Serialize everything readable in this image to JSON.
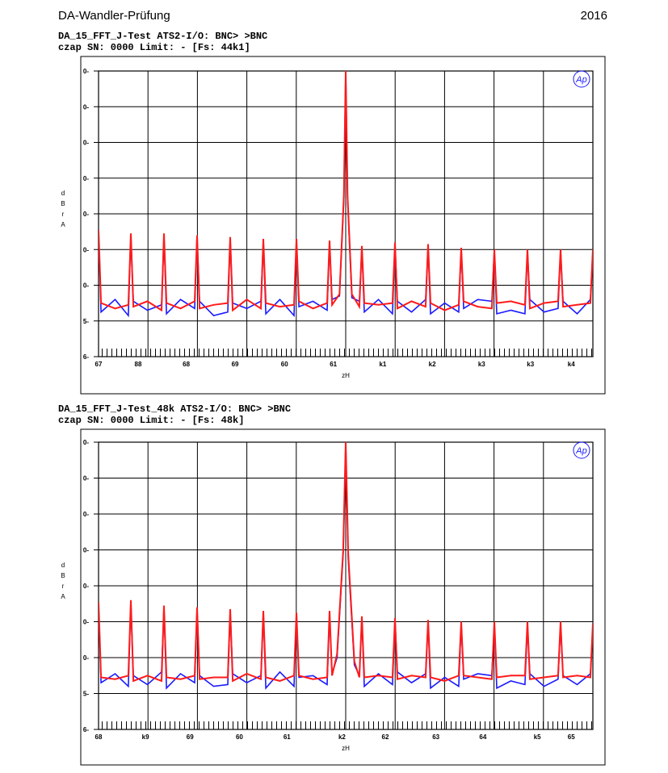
{
  "header": {
    "title": "DA-Wandler-Prüfung",
    "year": "2016"
  },
  "chart_data": [
    {
      "type": "line",
      "title": "DA_15_FFT_J-Test   ATS2-I/O: BNC> >BNC",
      "subtitle": "czap SN: 0000   Limit: - [Fs: 44k1]",
      "ylabel": "dBrA",
      "xlabel": "zH",
      "logo": "Ap",
      "xlim": [
        7000,
        15000
      ],
      "ylim": [
        -160,
        0
      ],
      "grid": true,
      "yticks": [
        {
          "value": 0,
          "label": "0-"
        },
        {
          "value": -20,
          "label": "0-"
        },
        {
          "value": -40,
          "label": "0-"
        },
        {
          "value": -60,
          "label": "0-"
        },
        {
          "value": -80,
          "label": "0-"
        },
        {
          "value": -100,
          "label": "0-"
        },
        {
          "value": -120,
          "label": "0-"
        },
        {
          "value": -140,
          "label": "5-"
        },
        {
          "value": -160,
          "label": "6-"
        }
      ],
      "xticks": [
        {
          "value": 7000,
          "label": "67"
        },
        {
          "value": 7640,
          "label": "88"
        },
        {
          "value": 8420,
          "label": "68"
        },
        {
          "value": 9210,
          "label": "69"
        },
        {
          "value": 10010,
          "label": "60"
        },
        {
          "value": 10800,
          "label": "61"
        },
        {
          "value": 11600,
          "label": "k1"
        },
        {
          "value": 12400,
          "label": "k2"
        },
        {
          "value": 13200,
          "label": "k3"
        },
        {
          "value": 13990,
          "label": "k3"
        },
        {
          "value": 14650,
          "label": "k4"
        }
      ],
      "x": [
        7000,
        7040,
        7268,
        7483,
        7523,
        7563,
        7791,
        8019,
        8059,
        8099,
        8327,
        8555,
        8595,
        8635,
        8863,
        9091,
        9131,
        9171,
        9399,
        9627,
        9667,
        9707,
        9935,
        10163,
        10203,
        10243,
        10471,
        10699,
        10739,
        10779,
        10900,
        10970,
        11000,
        11030,
        11100,
        11221,
        11261,
        11301,
        11529,
        11757,
        11797,
        11837,
        12065,
        12293,
        12333,
        12373,
        12601,
        12829,
        12869,
        12909,
        13137,
        13365,
        13405,
        13445,
        13673,
        13901,
        13941,
        13981,
        14209,
        14437,
        14477,
        14517,
        14745,
        14960,
        15000
      ],
      "series": [
        {
          "color": "#1a1aff",
          "values": [
            -90,
            -135,
            -128,
            -137,
            -92,
            -129,
            -134,
            -131,
            -92,
            -136,
            -128,
            -133,
            -93,
            -129,
            -137,
            -135,
            -94,
            -130,
            -133,
            -129,
            -95,
            -136,
            -128,
            -137,
            -95,
            -132,
            -129,
            -134,
            -96,
            -128,
            -126,
            -72,
            -1,
            -72,
            -127,
            -129,
            -99,
            -135,
            -128,
            -136,
            -97,
            -129,
            -135,
            -128,
            -98,
            -136,
            -130,
            -135,
            -100,
            -133,
            -128,
            -129,
            -101,
            -136,
            -134,
            -136,
            -101,
            -128,
            -135,
            -133,
            -101,
            -129,
            -136,
            -128,
            -101
          ]
        },
        {
          "color": "#ff1a1a",
          "values": [
            -89,
            -130,
            -133,
            -131,
            -91,
            -132,
            -129,
            -134,
            -91,
            -130,
            -133,
            -129,
            -92,
            -133,
            -131,
            -130,
            -93,
            -134,
            -128,
            -133,
            -94,
            -130,
            -132,
            -131,
            -94,
            -129,
            -133,
            -130,
            -95,
            -131,
            -125,
            -70,
            0,
            -70,
            -125,
            -132,
            -98,
            -130,
            -131,
            -130,
            -96,
            -133,
            -129,
            -132,
            -97,
            -130,
            -134,
            -131,
            -99,
            -129,
            -132,
            -133,
            -100,
            -130,
            -129,
            -131,
            -100,
            -133,
            -130,
            -129,
            -100,
            -132,
            -131,
            -130,
            -100
          ]
        }
      ]
    },
    {
      "type": "line",
      "title": "DA_15_FFT_J-Test_48k   ATS2-I/O: BNC> >BNC",
      "subtitle": "czap SN: 0000   Limit: - [Fs: 48k]",
      "ylabel": "dBrA",
      "xlabel": "zH",
      "logo": "Ap",
      "xlim": [
        8000,
        16000
      ],
      "ylim": [
        -160,
        0
      ],
      "grid": true,
      "yticks": [
        {
          "value": 0,
          "label": "0-"
        },
        {
          "value": -20,
          "label": "0-"
        },
        {
          "value": -40,
          "label": "0-"
        },
        {
          "value": -60,
          "label": "0-"
        },
        {
          "value": -80,
          "label": "0-"
        },
        {
          "value": -100,
          "label": "0-"
        },
        {
          "value": -120,
          "label": "0-"
        },
        {
          "value": -140,
          "label": "5-"
        },
        {
          "value": -160,
          "label": "6-"
        }
      ],
      "xticks": [
        {
          "value": 8000,
          "label": "68"
        },
        {
          "value": 8760,
          "label": "k9"
        },
        {
          "value": 9480,
          "label": "69"
        },
        {
          "value": 10280,
          "label": "60"
        },
        {
          "value": 11050,
          "label": "61"
        },
        {
          "value": 11940,
          "label": "k2"
        },
        {
          "value": 12640,
          "label": "62"
        },
        {
          "value": 13460,
          "label": "63"
        },
        {
          "value": 14220,
          "label": "64"
        },
        {
          "value": 15100,
          "label": "k5"
        },
        {
          "value": 15650,
          "label": "65"
        }
      ],
      "x": [
        8000,
        8040,
        8268,
        8483,
        8523,
        8563,
        8791,
        9019,
        9059,
        9099,
        9327,
        9555,
        9595,
        9635,
        9863,
        10091,
        10131,
        10171,
        10399,
        10627,
        10667,
        10707,
        10935,
        11163,
        11203,
        11243,
        11471,
        11699,
        11739,
        11779,
        11860,
        11960,
        12000,
        12040,
        12140,
        12221,
        12261,
        12301,
        12529,
        12757,
        12797,
        12837,
        13065,
        13293,
        13333,
        13373,
        13601,
        13829,
        13869,
        13909,
        14137,
        14365,
        14405,
        14445,
        14673,
        14901,
        14941,
        14981,
        15209,
        15437,
        15477,
        15517,
        15745,
        15960,
        16000
      ],
      "series": [
        {
          "color": "#1a1aff",
          "values": [
            -90,
            -134,
            -129,
            -136,
            -89,
            -130,
            -135,
            -128,
            -92,
            -137,
            -129,
            -134,
            -93,
            -130,
            -136,
            -135,
            -94,
            -129,
            -134,
            -130,
            -95,
            -137,
            -128,
            -136,
            -96,
            -131,
            -130,
            -135,
            -96,
            -129,
            -120,
            -62,
            -1,
            -65,
            -124,
            -130,
            -98,
            -136,
            -129,
            -135,
            -99,
            -128,
            -134,
            -129,
            -100,
            -137,
            -131,
            -136,
            -101,
            -132,
            -129,
            -130,
            -101,
            -137,
            -133,
            -135,
            -102,
            -129,
            -136,
            -132,
            -102,
            -130,
            -135,
            -129,
            -103
          ]
        },
        {
          "color": "#ff1a1a",
          "values": [
            -89,
            -131,
            -132,
            -130,
            -88,
            -133,
            -130,
            -133,
            -91,
            -131,
            -132,
            -130,
            -92,
            -132,
            -131,
            -131,
            -93,
            -133,
            -129,
            -132,
            -94,
            -131,
            -133,
            -130,
            -95,
            -130,
            -132,
            -131,
            -94,
            -130,
            -118,
            -60,
            0,
            -62,
            -122,
            -131,
            -97,
            -131,
            -130,
            -131,
            -98,
            -132,
            -130,
            -131,
            -99,
            -131,
            -133,
            -130,
            -100,
            -130,
            -131,
            -132,
            -100,
            -131,
            -130,
            -130,
            -100,
            -132,
            -131,
            -130,
            -100,
            -131,
            -130,
            -131,
            -101
          ]
        }
      ]
    }
  ]
}
